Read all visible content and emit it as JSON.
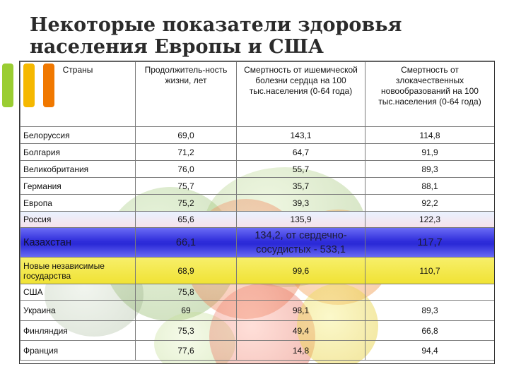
{
  "title": {
    "line1": "Некоторые показатели здоровья",
    "line2": "населения Европы и США"
  },
  "table": {
    "headers": {
      "country": "Страны",
      "life_expectancy": "Продолжитель-ность жизни, лет",
      "ischemic_mortality": "Смертность от ишемической болезни сердца на 100 тыс.населения (0-64 года)",
      "cancer_mortality": "Смертность от злокачественных новообразований на 100 тыс.населения (0-64 года)"
    },
    "rows": [
      {
        "country": "Белоруссия",
        "life": "69,0",
        "ischemic": "143,1",
        "cancer": "114,8"
      },
      {
        "country": "Болгария",
        "life": "71,2",
        "ischemic": "64,7",
        "cancer": "91,9"
      },
      {
        "country": "Великобритания",
        "life": "76,0",
        "ischemic": "55,7",
        "cancer": "89,3"
      },
      {
        "country": "Германия",
        "life": "75,7",
        "ischemic": "35,7",
        "cancer": "88,1"
      },
      {
        "country": "Европа",
        "life": "75,2",
        "ischemic": "39,3",
        "cancer": "92,2"
      },
      {
        "country": "Россия",
        "life": "65,6",
        "ischemic": "135,9",
        "cancer": "122,3"
      },
      {
        "country": "Казахстан",
        "life": "66,1",
        "ischemic": "134,2, от сердечно-сосудистых  - 533,1",
        "cancer": "117,7"
      },
      {
        "country": "Новые независимые государства",
        "life": "68,9",
        "ischemic": "99,6",
        "cancer": "110,7"
      },
      {
        "country": "США",
        "life": "75,8",
        "ischemic": "",
        "cancer": ""
      },
      {
        "country": "Украина",
        "life": "69",
        "ischemic": "98,1",
        "cancer": "89,3"
      },
      {
        "country": "Финляндия",
        "life": "75,3",
        "ischemic": "49,4",
        "cancer": "66,8"
      },
      {
        "country": "Франция",
        "life": "77,6",
        "ischemic": "14,8",
        "cancer": "94,4"
      }
    ]
  },
  "colors": {
    "kazakhstan_row": "#2f2ddb",
    "nis_row": "#f0e233",
    "russia_row": "#f2e8f2",
    "deco_green": "#9acd32",
    "deco_yellow": "#f5b800",
    "deco_orange": "#f07800"
  }
}
